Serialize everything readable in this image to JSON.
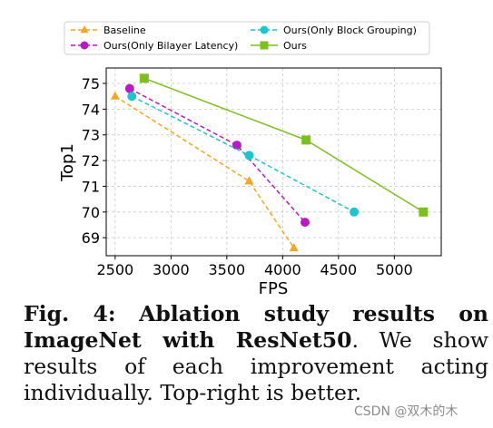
{
  "chart_data": {
    "type": "line",
    "xlabel": "FPS",
    "ylabel": "Top1",
    "xlim": [
      2420,
      5420
    ],
    "ylim": [
      68.3,
      75.6
    ],
    "x_ticks": [
      2500,
      3000,
      3500,
      4000,
      4500,
      5000
    ],
    "y_ticks": [
      69,
      70,
      71,
      72,
      73,
      74,
      75
    ],
    "grid": true,
    "legend_position": "top",
    "series": [
      {
        "name": "Baseline",
        "color": "#F5A623",
        "marker": "triangle",
        "line_style": "dashed",
        "x": [
          2500,
          3700,
          4100
        ],
        "y": [
          74.5,
          71.2,
          68.6
        ]
      },
      {
        "name": "Ours(Only Bilayer Latency)",
        "color": "#B81BC4",
        "marker": "circle",
        "line_style": "dashed",
        "x": [
          2630,
          3590,
          4200
        ],
        "y": [
          74.8,
          72.6,
          69.6
        ]
      },
      {
        "name": "Ours(Only Block Grouping)",
        "color": "#20C4CC",
        "marker": "circle",
        "line_style": "dashed",
        "x": [
          2650,
          3700,
          4640
        ],
        "y": [
          74.5,
          72.2,
          70.0
        ]
      },
      {
        "name": "Ours",
        "color": "#7CBF1E",
        "marker": "square",
        "line_style": "solid",
        "x": [
          2760,
          4210,
          5260
        ],
        "y": [
          75.2,
          72.8,
          70.0
        ]
      }
    ]
  },
  "caption": {
    "label": "Fig. 4:",
    "title": "Ablation study results on ImageNet with ResNet50",
    "body": ". We show results of each improvement acting individually. Top-right is better."
  },
  "watermark": "CSDN @双木的木"
}
